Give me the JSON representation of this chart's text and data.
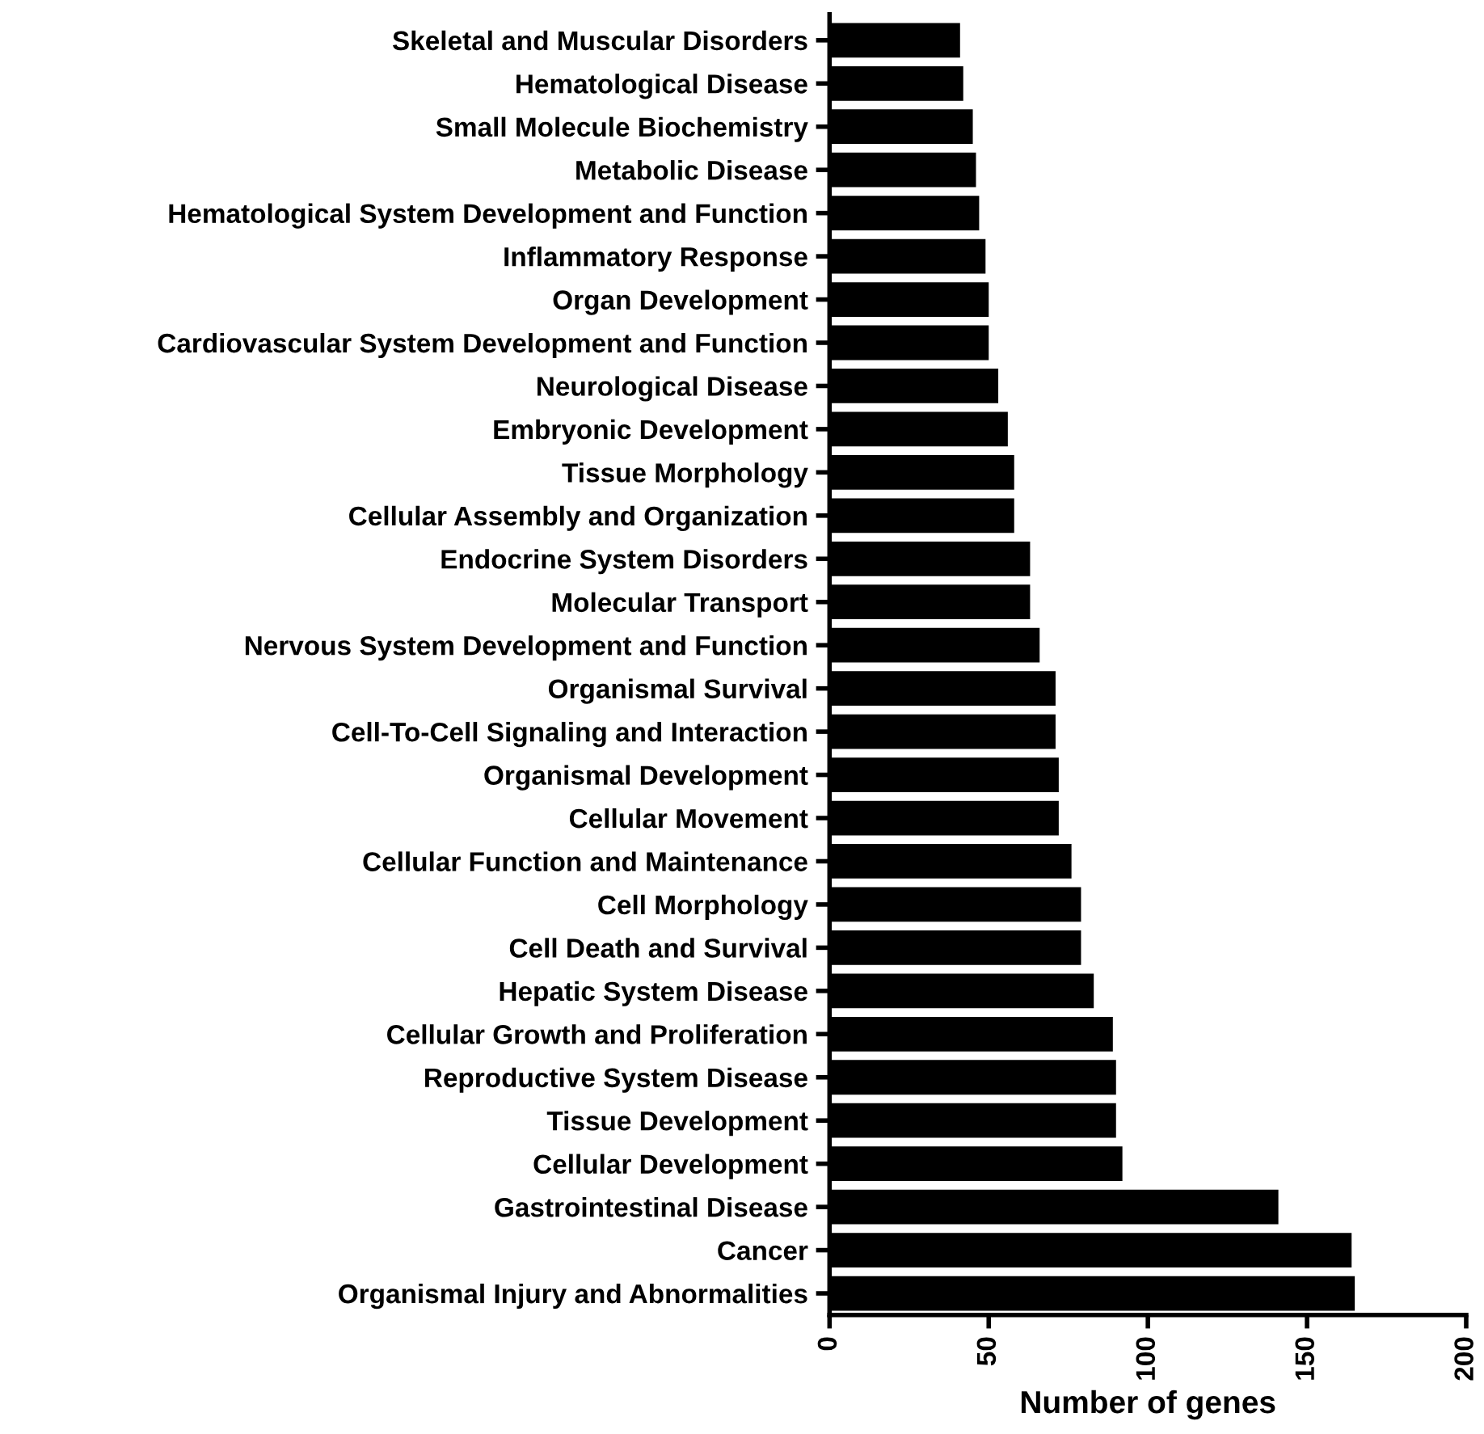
{
  "chart_data": {
    "type": "bar",
    "orientation": "horizontal",
    "xlabel": "Number of genes",
    "categories": [
      "Skeletal and Muscular Disorders",
      "Hematological Disease",
      "Small Molecule Biochemistry",
      "Metabolic Disease",
      "Hematological System Development and Function",
      "Inflammatory Response",
      "Organ Development",
      "Cardiovascular System Development and Function",
      "Neurological Disease",
      "Embryonic Development",
      "Tissue Morphology",
      "Cellular Assembly and Organization",
      "Endocrine System Disorders",
      "Molecular Transport",
      "Nervous System Development and Function",
      "Organismal Survival",
      "Cell-To-Cell Signaling and Interaction",
      "Organismal Development",
      "Cellular Movement",
      "Cellular Function and Maintenance",
      "Cell Morphology",
      "Cell Death and Survival",
      "Hepatic System Disease",
      "Cellular Growth and Proliferation",
      "Reproductive System Disease",
      "Tissue Development",
      "Cellular Development",
      "Gastrointestinal Disease",
      "Cancer",
      "Organismal Injury and Abnormalities"
    ],
    "values": [
      41,
      42,
      45,
      46,
      47,
      49,
      50,
      50,
      53,
      56,
      58,
      58,
      63,
      63,
      66,
      71,
      71,
      72,
      72,
      76,
      79,
      79,
      83,
      89,
      90,
      90,
      92,
      141,
      164,
      165
    ],
    "color": "#000000",
    "xlim": [
      0,
      200
    ],
    "xticks": [
      0,
      50,
      100,
      150,
      200
    ],
    "grid": false,
    "legend": false
  }
}
